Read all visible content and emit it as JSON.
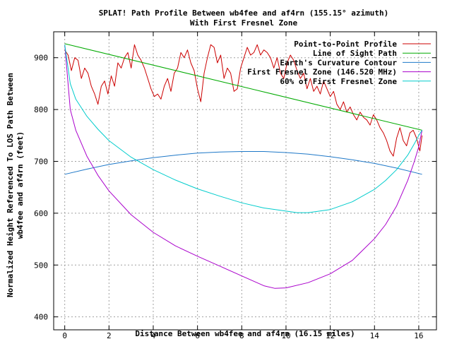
{
  "chart_data": {
    "type": "line",
    "title": "SPLAT! Path Profile Between wb4fee and af4rn (155.15° azimuth)",
    "subtitle": "With First Fresnel Zone",
    "xlabel": "Distance Between wb4fee and af4rn (16.15 miles)",
    "ylabel_line1": "Normalized Height Referenced To LOS Path Between",
    "ylabel_line2": "wb4fee and af4rn (feet)",
    "xlim": [
      -0.5,
      16.8
    ],
    "ylim": [
      375,
      950
    ],
    "xticks": [
      0,
      2,
      4,
      6,
      8,
      10,
      12,
      14,
      16
    ],
    "yticks": [
      400,
      500,
      600,
      700,
      800,
      900
    ],
    "grid": true,
    "legend_position": "top-right",
    "path_length_miles": 16.15,
    "series": [
      {
        "name": "Point-to-Point Profile",
        "color": "#cc0000",
        "x": [
          0,
          0.15,
          0.3,
          0.45,
          0.6,
          0.75,
          0.9,
          1.05,
          1.2,
          1.35,
          1.5,
          1.65,
          1.8,
          1.95,
          2.1,
          2.25,
          2.4,
          2.55,
          2.7,
          2.85,
          3.0,
          3.15,
          3.3,
          3.45,
          3.6,
          3.75,
          3.9,
          4.05,
          4.2,
          4.35,
          4.5,
          4.65,
          4.8,
          4.95,
          5.1,
          5.25,
          5.4,
          5.55,
          5.7,
          5.85,
          6.0,
          6.15,
          6.3,
          6.45,
          6.6,
          6.75,
          6.9,
          7.05,
          7.2,
          7.35,
          7.5,
          7.65,
          7.8,
          7.95,
          8.1,
          8.25,
          8.4,
          8.55,
          8.7,
          8.85,
          9.0,
          9.15,
          9.3,
          9.45,
          9.6,
          9.75,
          9.9,
          10.05,
          10.2,
          10.35,
          10.5,
          10.65,
          10.8,
          10.95,
          11.1,
          11.25,
          11.4,
          11.55,
          11.7,
          11.85,
          12.0,
          12.15,
          12.3,
          12.45,
          12.6,
          12.75,
          12.9,
          13.05,
          13.2,
          13.35,
          13.5,
          13.65,
          13.8,
          13.95,
          14.1,
          14.25,
          14.4,
          14.55,
          14.7,
          14.85,
          15.0,
          15.15,
          15.3,
          15.45,
          15.6,
          15.75,
          15.9,
          16.05,
          16.15
        ],
        "y": [
          915,
          905,
          875,
          900,
          895,
          860,
          880,
          870,
          845,
          830,
          810,
          845,
          855,
          830,
          865,
          845,
          890,
          880,
          900,
          910,
          880,
          925,
          905,
          895,
          880,
          860,
          840,
          825,
          830,
          820,
          845,
          860,
          835,
          870,
          880,
          910,
          900,
          915,
          890,
          875,
          840,
          815,
          870,
          900,
          925,
          920,
          890,
          905,
          860,
          880,
          870,
          835,
          840,
          880,
          900,
          920,
          905,
          910,
          925,
          905,
          915,
          910,
          900,
          880,
          900,
          870,
          860,
          890,
          905,
          895,
          875,
          860,
          870,
          840,
          860,
          835,
          845,
          830,
          855,
          840,
          825,
          835,
          810,
          800,
          815,
          795,
          805,
          790,
          780,
          795,
          785,
          780,
          770,
          790,
          780,
          765,
          755,
          740,
          720,
          710,
          745,
          765,
          740,
          730,
          755,
          760,
          745,
          720,
          750
        ]
      },
      {
        "name": "Line of Sight Path",
        "color": "#00aa00",
        "x": [
          0,
          16.15
        ],
        "y": [
          927,
          760
        ]
      },
      {
        "name": "Earth's Curvature Contour",
        "color": "#1e78c8",
        "x": [
          0,
          1,
          2,
          3,
          4,
          5,
          6,
          7,
          8,
          9,
          10,
          11,
          12,
          13,
          14,
          15,
          16.15
        ],
        "y": [
          675,
          685,
          694,
          701,
          707,
          712,
          716,
          718,
          719,
          719,
          717,
          714,
          709,
          703,
          696,
          687,
          675
        ]
      },
      {
        "name": "First Fresnel Zone (146.520 MHz)",
        "color": "#aa00cc",
        "x": [
          0,
          0.25,
          0.5,
          1,
          1.5,
          2,
          3,
          4,
          5,
          6,
          7,
          8,
          9,
          9.5,
          10,
          11,
          12,
          13,
          14,
          14.5,
          15,
          15.5,
          15.8,
          16,
          16.15
        ],
        "y": [
          925,
          800,
          760,
          710,
          673,
          643,
          597,
          563,
          537,
          517,
          498,
          479,
          460,
          455,
          456,
          466,
          483,
          509,
          551,
          578,
          614,
          663,
          700,
          728,
          760
        ]
      },
      {
        "name": "60% of First Fresnel Zone",
        "color": "#00cccc",
        "x": [
          0,
          0.25,
          0.5,
          1,
          1.5,
          2,
          3,
          4,
          5,
          6,
          7,
          8,
          9,
          10,
          10.5,
          11,
          12,
          13,
          14,
          14.5,
          15,
          15.5,
          15.8,
          16,
          16.15
        ],
        "y": [
          925,
          850,
          820,
          787,
          762,
          740,
          708,
          684,
          664,
          647,
          633,
          620,
          610,
          604,
          601,
          601,
          607,
          622,
          646,
          663,
          684,
          712,
          734,
          750,
          760
        ]
      }
    ]
  }
}
